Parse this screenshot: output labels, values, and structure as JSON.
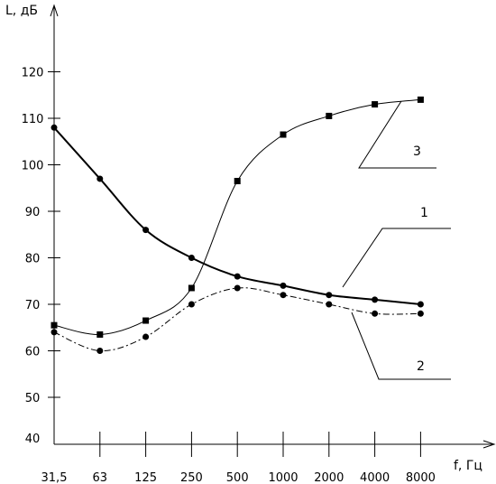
{
  "chart_data": {
    "type": "line",
    "title": "",
    "ylabel": "L, дБ",
    "xlabel": "f, Гц",
    "ylim": [
      40,
      130
    ],
    "y_ticks": [
      "40",
      "50",
      "60",
      "70",
      "80",
      "90",
      "100",
      "110",
      "120"
    ],
    "categories": [
      "31,5",
      "63",
      "125",
      "250",
      "500",
      "1000",
      "2000",
      "4000",
      "8000"
    ],
    "grid": false,
    "series": [
      {
        "name": "1",
        "marker": "circle",
        "line_style": "solid-thick",
        "values": [
          108,
          97,
          86,
          80,
          76,
          74,
          72,
          71,
          70
        ]
      },
      {
        "name": "2",
        "marker": "circle",
        "line_style": "dash-dot",
        "values": [
          64,
          60,
          63,
          70,
          73.5,
          72,
          70,
          68,
          68
        ]
      },
      {
        "name": "3",
        "marker": "square",
        "line_style": "solid-thin",
        "values": [
          65.5,
          63.5,
          66.5,
          73.5,
          96.5,
          106.5,
          110.5,
          113,
          114
        ]
      }
    ]
  }
}
